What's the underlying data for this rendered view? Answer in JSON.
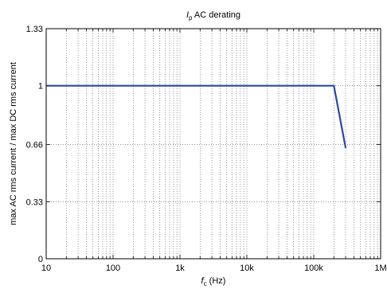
{
  "chart_data": {
    "type": "line",
    "title_symbol": "I",
    "title_subscript": "p",
    "title_rest": " AC derating",
    "xlabel_symbol": "f",
    "xlabel_subscript": "c",
    "xlabel_rest": " (Hz)",
    "ylabel": "max AC rms current / max DC rms current",
    "x_scale": "log",
    "xlim": [
      10,
      1000000
    ],
    "ylim": [
      0,
      1.33
    ],
    "x_ticks": [
      {
        "value": 10,
        "label": "10"
      },
      {
        "value": 100,
        "label": "100"
      },
      {
        "value": 1000,
        "label": "1k"
      },
      {
        "value": 10000,
        "label": "10k"
      },
      {
        "value": 100000,
        "label": "100k"
      },
      {
        "value": 1000000,
        "label": "1M"
      }
    ],
    "y_ticks": [
      {
        "value": 0,
        "label": "0"
      },
      {
        "value": 0.33,
        "label": "0.33"
      },
      {
        "value": 0.66,
        "label": "0.66"
      },
      {
        "value": 1,
        "label": "1"
      },
      {
        "value": 1.33,
        "label": "1.33"
      }
    ],
    "grid": true,
    "series": [
      {
        "color": "#2b4aa0",
        "points": [
          [
            10,
            1
          ],
          [
            200000,
            1
          ],
          [
            300000,
            0.64
          ]
        ]
      }
    ]
  }
}
